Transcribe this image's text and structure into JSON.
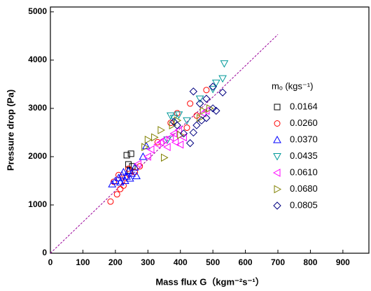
{
  "chart_data": {
    "type": "scatter",
    "xlabel": "Mass flux G（kgm⁻²s⁻¹）",
    "ylabel": "Pressure drop (Pa)",
    "legend_title": "mₒ (kgs⁻¹)",
    "xlim": [
      0,
      980
    ],
    "ylim": [
      0,
      5100
    ],
    "xticks": [
      0,
      100,
      200,
      300,
      400,
      500,
      600,
      700,
      800,
      900
    ],
    "yticks": [
      0,
      1000,
      2000,
      3000,
      4000,
      5000
    ],
    "reference_line": {
      "x": [
        0,
        700
      ],
      "y": [
        0,
        4530
      ],
      "color": "#990099"
    },
    "series": [
      {
        "name": "0.0164",
        "color": "#000000",
        "marker": "square",
        "x": [
          235,
          248,
          240,
          252,
          245
        ],
        "y": [
          2030,
          2060,
          1840,
          1800,
          1710
        ]
      },
      {
        "name": "0.0260",
        "color": "#ff0000",
        "marker": "circle",
        "x": [
          185,
          195,
          205,
          210,
          215,
          225,
          230,
          240,
          260,
          275,
          330,
          370,
          390,
          430,
          480,
          450,
          420
        ],
        "y": [
          1070,
          1480,
          1220,
          1620,
          1330,
          1400,
          1560,
          1750,
          1680,
          1800,
          2300,
          2700,
          2900,
          3100,
          3380,
          2850,
          2600
        ]
      },
      {
        "name": "0.0370",
        "color": "#0000ff",
        "marker": "up",
        "x": [
          190,
          200,
          210,
          215,
          220,
          225,
          230,
          235,
          240,
          245,
          250,
          260,
          265,
          285,
          295
        ],
        "y": [
          1430,
          1500,
          1560,
          1470,
          1620,
          1680,
          1500,
          1590,
          1700,
          1550,
          1650,
          1780,
          1600,
          2000,
          2220
        ]
      },
      {
        "name": "0.0435",
        "color": "#009999",
        "marker": "down",
        "x": [
          370,
          380,
          395,
          420,
          460,
          500,
          510,
          530,
          535,
          360
        ],
        "y": [
          2850,
          2800,
          2870,
          2750,
          3200,
          3400,
          3530,
          3620,
          3930,
          2350
        ]
      },
      {
        "name": "0.0610",
        "color": "#ff00ff",
        "marker": "left",
        "x": [
          270,
          300,
          310,
          330,
          340,
          350,
          360,
          370,
          380,
          385,
          395,
          400,
          410,
          470,
          480
        ],
        "y": [
          1850,
          2000,
          2150,
          2250,
          2300,
          2350,
          2200,
          2400,
          2480,
          2300,
          2550,
          2250,
          2400,
          2900,
          2950
        ]
      },
      {
        "name": "0.0680",
        "color": "#808000",
        "marker": "right",
        "x": [
          290,
          300,
          320,
          340,
          350,
          375,
          390,
          400,
          460,
          470,
          490
        ],
        "y": [
          2200,
          2350,
          2400,
          2550,
          1980,
          2650,
          2750,
          2450,
          2800,
          2950,
          3000
        ]
      },
      {
        "name": "0.0805",
        "color": "#000080",
        "marker": "diamond",
        "x": [
          380,
          390,
          410,
          430,
          440,
          450,
          465,
          480,
          500,
          510,
          440,
          480,
          500,
          530,
          460
        ],
        "y": [
          2720,
          2650,
          2480,
          2280,
          2500,
          2650,
          2750,
          2800,
          3000,
          2950,
          3350,
          3200,
          3450,
          3330,
          3100
        ]
      }
    ]
  }
}
